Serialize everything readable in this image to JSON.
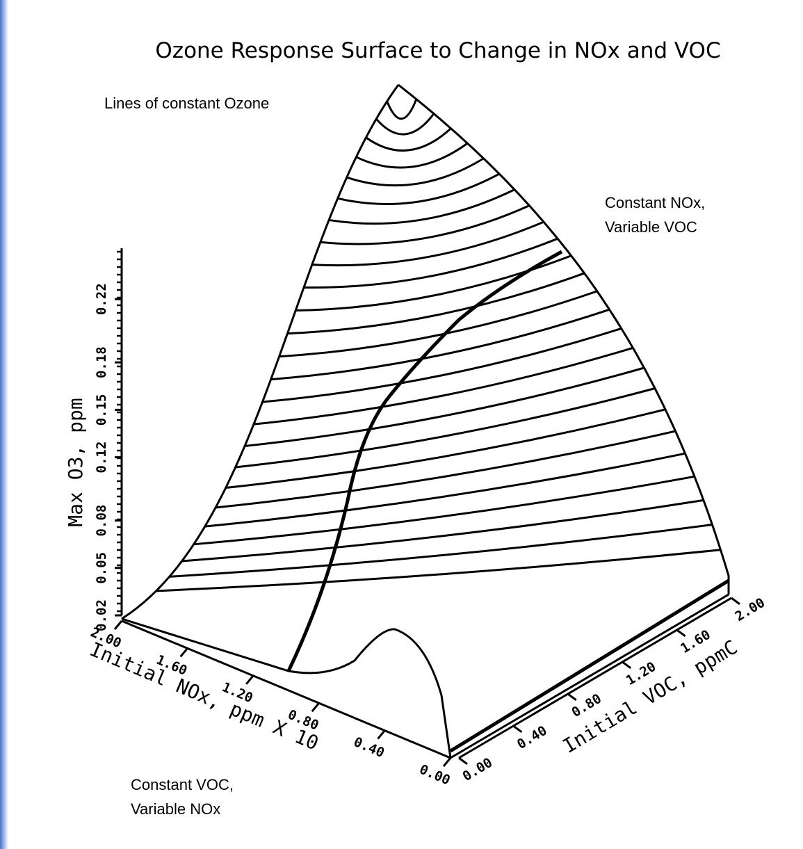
{
  "chart_data": {
    "type": "surface",
    "title": "Ozone Response Surface to Change in NOx and VOC",
    "annotations": [
      "Lines of constant Ozone",
      "Constant NOx,",
      "Variable VOC",
      "Constant VOC,",
      "Variable NOx"
    ],
    "xlabel": "Initial NOx, ppm X 10",
    "ylabel": "Initial VOC, ppmC",
    "zlabel": "Max O3, ppm",
    "xlim": [
      2,
      0
    ],
    "xticks": [
      {
        "value": 2,
        "label": "2.00"
      },
      {
        "value": 1.6,
        "label": "1.60"
      },
      {
        "value": 1.2,
        "label": "1.20"
      },
      {
        "value": 0.8,
        "label": "0.80"
      },
      {
        "value": 0.4,
        "label": "0.40"
      },
      {
        "value": 0,
        "label": "0.00"
      }
    ],
    "ylim": [
      0,
      2
    ],
    "yticks": [
      {
        "value": 0,
        "label": "0.00"
      },
      {
        "value": 0.4,
        "label": "0.40"
      },
      {
        "value": 0.8,
        "label": "0.80"
      },
      {
        "value": 1.2,
        "label": "1.20"
      },
      {
        "value": 1.6,
        "label": "1.60"
      },
      {
        "value": 2,
        "label": "2.00"
      }
    ],
    "zlim": [
      0.02,
      0.25
    ],
    "zticks": [
      0.02,
      0.05,
      0.08,
      0.12,
      0.15,
      0.18,
      0.22
    ]
  }
}
